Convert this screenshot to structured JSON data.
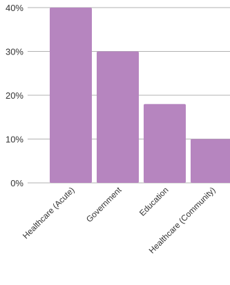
{
  "chart_data": {
    "type": "bar",
    "title": "",
    "xlabel": "",
    "ylabel": "",
    "categories": [
      "Healthcare (Acute)",
      "Government",
      "Education",
      "Healthcare (Community)"
    ],
    "values": [
      40,
      30,
      18,
      10
    ],
    "value_unit": "%",
    "ylim": [
      0,
      40
    ],
    "yticks": [
      0,
      10,
      20,
      30,
      40
    ],
    "ytick_labels": [
      "0%",
      "10%",
      "20%",
      "30%",
      "40%"
    ],
    "grid": true,
    "legend": "none",
    "colors": {
      "bar": "#b685bf",
      "grid": "#b0b0b0",
      "text": "#333333"
    }
  }
}
